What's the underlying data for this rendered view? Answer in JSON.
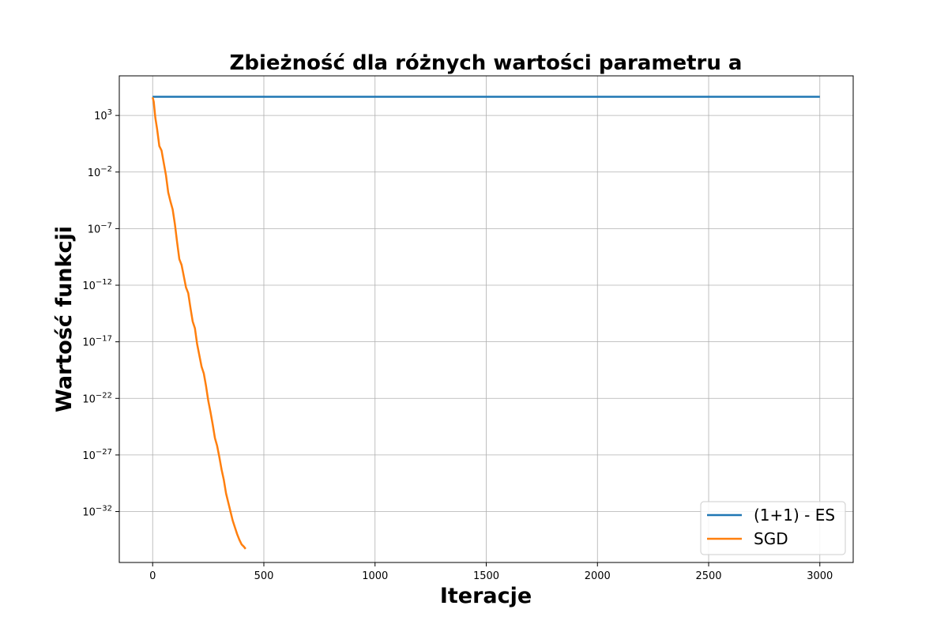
{
  "chart_data": {
    "type": "line",
    "title": "Zbieżność dla różnych wartości parametru a",
    "xlabel": "Iteracje",
    "ylabel": "Wartość funkcji",
    "y_scale": "log",
    "xlim": [
      -150,
      3150
    ],
    "ylim_exp": [
      -36.5,
      6.5
    ],
    "x_ticks": [
      0,
      500,
      1000,
      1500,
      2000,
      2500,
      3000
    ],
    "x_tick_labels": [
      "0",
      "500",
      "1000",
      "1500",
      "2000",
      "2500",
      "3000"
    ],
    "y_tick_exponents": [
      3,
      -2,
      -7,
      -12,
      -17,
      -22,
      -27,
      -32
    ],
    "y_tick_base": "10",
    "grid": true,
    "legend_position": "lower-right",
    "series": [
      {
        "name": "(1+1) - ES",
        "color": "#1f77b4",
        "x": [
          0,
          3000
        ],
        "log10_y": [
          4.65,
          4.65
        ]
      },
      {
        "name": "SGD",
        "color": "#ff7f0e",
        "x": [
          0,
          5,
          12,
          20,
          30,
          40,
          50,
          60,
          70,
          80,
          90,
          100,
          110,
          120,
          130,
          140,
          150,
          160,
          170,
          180,
          190,
          200,
          210,
          220,
          230,
          240,
          250,
          260,
          270,
          280,
          290,
          300,
          310,
          320,
          330,
          340,
          350,
          360,
          370,
          380,
          390,
          400,
          410,
          418
        ],
        "log10_y": [
          4.6,
          4.2,
          2.8,
          1.8,
          0.3,
          -0.1,
          -1.2,
          -2.3,
          -3.8,
          -4.6,
          -5.3,
          -6.6,
          -8.2,
          -9.7,
          -10.2,
          -11.2,
          -12.2,
          -12.7,
          -14.0,
          -15.2,
          -15.8,
          -17.2,
          -18.2,
          -19.2,
          -19.8,
          -20.9,
          -22.2,
          -23.2,
          -24.3,
          -25.5,
          -26.2,
          -27.2,
          -28.3,
          -29.2,
          -30.4,
          -31.2,
          -32.0,
          -32.8,
          -33.4,
          -34.0,
          -34.5,
          -34.9,
          -35.1,
          -35.3
        ]
      }
    ]
  }
}
